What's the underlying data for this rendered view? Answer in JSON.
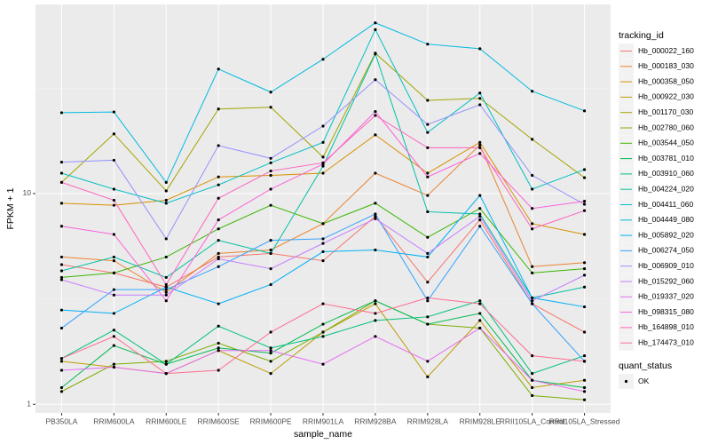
{
  "chart_data": {
    "type": "line",
    "xlabel": "sample_name",
    "ylabel": "FPKM + 1",
    "categories": [
      "PB350LA",
      "RRIM600LA",
      "RRIM600LE",
      "RRIM600SE",
      "RRIM600PE",
      "RRIM901LA",
      "RRIM928BA",
      "RRIM928LA",
      "RRIM928LE",
      "RRII105LA_Control",
      "RRII105LA_Stressed"
    ],
    "ylim": [
      0.91,
      79
    ],
    "yticks": [
      1,
      10
    ],
    "log_y": true,
    "grid": true,
    "legend_title": "tracking_id",
    "legend_position": "right",
    "point_legend_title": "quant_status",
    "point_legend_label": "OK",
    "point_color": "#000000",
    "series": [
      {
        "name": "Hb_000022_160",
        "color": "#F8766D",
        "values": [
          4.6,
          4.2,
          3.6,
          5.0,
          5.2,
          4.8,
          7.8,
          3.8,
          7.5,
          3.0,
          2.2
        ]
      },
      {
        "name": "Hb_000183_030",
        "color": "#EA8331",
        "values": [
          5.0,
          4.8,
          3.4,
          5.2,
          5.4,
          7.2,
          12.5,
          9.8,
          17,
          4.5,
          4.7
        ]
      },
      {
        "name": "Hb_000358_050",
        "color": "#D89000",
        "values": [
          9.0,
          8.8,
          9.3,
          12.0,
          12.2,
          12.5,
          19,
          12.5,
          17.5,
          7.2,
          6.4
        ]
      },
      {
        "name": "Hb_000922_030",
        "color": "#C09B00",
        "values": [
          1.6,
          1.5,
          1.4,
          1.8,
          1.4,
          2.2,
          3.0,
          1.35,
          2.5,
          1.2,
          1.3
        ]
      },
      {
        "name": "Hb_001170_030",
        "color": "#A3A500",
        "values": [
          11.3,
          19.2,
          10.3,
          25.2,
          25.7,
          14.9,
          46.4,
          27.7,
          28.3,
          18.1,
          11.9
        ]
      },
      {
        "name": "Hb_002780_060",
        "color": "#7CAE00",
        "values": [
          1.15,
          1.55,
          1.6,
          1.95,
          1.6,
          2.2,
          3.1,
          2.4,
          2.3,
          1.1,
          1.05
        ]
      },
      {
        "name": "Hb_003544_050",
        "color": "#39B600",
        "values": [
          4.0,
          4.2,
          5.0,
          6.8,
          8.8,
          7.2,
          9.0,
          6.2,
          8.5,
          4.2,
          4.4
        ]
      },
      {
        "name": "Hb_003781_010",
        "color": "#00BB4E",
        "values": [
          1.2,
          1.9,
          1.55,
          1.85,
          1.75,
          2.4,
          3.1,
          2.4,
          2.7,
          1.3,
          1.2
        ]
      },
      {
        "name": "Hb_003910_060",
        "color": "#00BF7D",
        "values": [
          1.65,
          2.25,
          1.55,
          2.35,
          1.85,
          2.1,
          2.5,
          2.6,
          3.1,
          1.4,
          1.7
        ]
      },
      {
        "name": "Hb_004224_020",
        "color": "#00C1A3",
        "values": [
          4.3,
          5.0,
          4.0,
          6.0,
          5.2,
          13.5,
          46,
          8.2,
          8.0,
          3.2,
          3.6
        ]
      },
      {
        "name": "Hb_004411_060",
        "color": "#00BFC4",
        "values": [
          12.5,
          10.5,
          9.0,
          11.0,
          14.0,
          17.5,
          60,
          19.5,
          30,
          10.5,
          13.0
        ]
      },
      {
        "name": "Hb_004449_080",
        "color": "#00BAE0",
        "values": [
          24.2,
          24.4,
          11.3,
          39,
          30.3,
          43.4,
          64.6,
          51.2,
          48.7,
          30.6,
          24.7
        ]
      },
      {
        "name": "Hb_005892_020",
        "color": "#00B0F6",
        "values": [
          2.8,
          2.7,
          3.6,
          3.0,
          3.7,
          5.3,
          5.4,
          5.0,
          9.8,
          3.2,
          2.9
        ]
      },
      {
        "name": "Hb_006274_050",
        "color": "#35A2FF",
        "values": [
          2.3,
          3.5,
          3.5,
          4.5,
          6.0,
          6.1,
          8.0,
          3.1,
          7.0,
          3.0,
          1.6
        ]
      },
      {
        "name": "Hb_006909_010",
        "color": "#9590FF",
        "values": [
          14.1,
          14.4,
          6.1,
          16.9,
          14.7,
          20.9,
          34.7,
          21.3,
          26.4,
          12.2,
          8.9
        ]
      },
      {
        "name": "Hb_015292_060",
        "color": "#C77CFF",
        "values": [
          3.9,
          3.3,
          3.3,
          4.9,
          4.4,
          5.8,
          7.6,
          5.2,
          7.8,
          3.1,
          4.1
        ]
      },
      {
        "name": "Hb_019337_020",
        "color": "#E76BF3",
        "values": [
          1.45,
          1.5,
          1.4,
          1.8,
          1.8,
          1.55,
          2.1,
          1.6,
          2.3,
          1.3,
          1.15
        ]
      },
      {
        "name": "Hb_098315_080",
        "color": "#FA62DB",
        "values": [
          7.0,
          6.4,
          3.1,
          7.5,
          10.5,
          13.8,
          24.5,
          12.0,
          15.5,
          8.5,
          9.2
        ]
      },
      {
        "name": "Hb_164898_010",
        "color": "#FF62BC",
        "values": [
          11.3,
          9.3,
          3.7,
          9.5,
          12.8,
          14.0,
          23.5,
          16.5,
          16.5,
          6.8,
          8.3
        ]
      },
      {
        "name": "Hb_174473_010",
        "color": "#FF6C91",
        "values": [
          1.65,
          2.1,
          1.4,
          1.45,
          2.2,
          3.0,
          2.7,
          3.2,
          3.0,
          1.7,
          1.6
        ]
      }
    ]
  }
}
